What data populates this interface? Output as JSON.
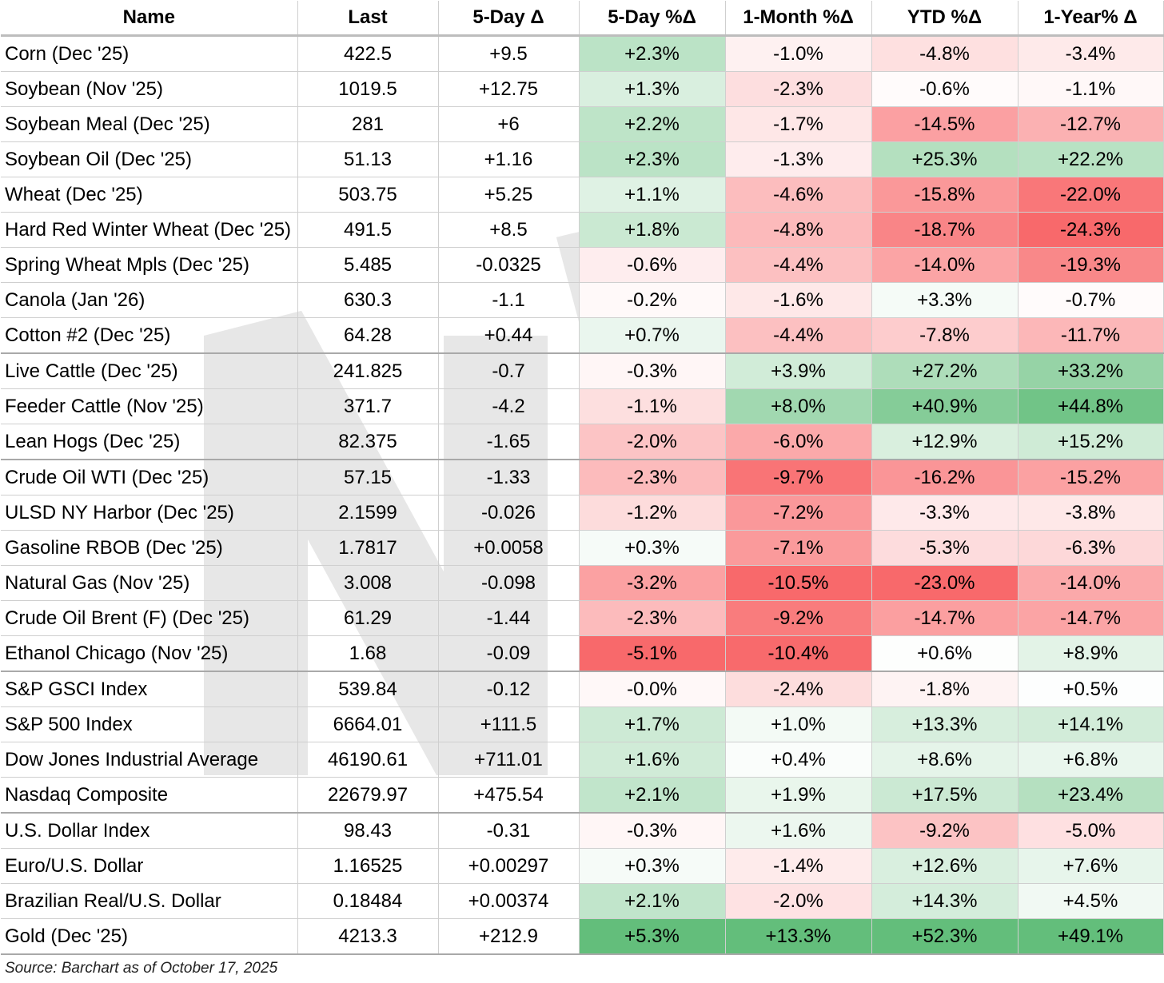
{
  "headers": [
    "Name",
    "Last",
    "5-Day Δ",
    "5-Day %Δ",
    "1-Month %Δ",
    "YTD %Δ",
    "1-Year% Δ"
  ],
  "rows": [
    {
      "name": "Corn (Dec '25)",
      "last": "422.5",
      "d5": "+9.5",
      "p5": "+2.3%",
      "m1": "-1.0%",
      "ytd": "-4.8%",
      "y1": "-3.4%"
    },
    {
      "name": "Soybean (Nov '25)",
      "last": "1019.5",
      "d5": "+12.75",
      "p5": "+1.3%",
      "m1": "-2.3%",
      "ytd": "-0.6%",
      "y1": "-1.1%"
    },
    {
      "name": "Soybean Meal (Dec '25)",
      "last": "281",
      "d5": "+6",
      "p5": "+2.2%",
      "m1": "-1.7%",
      "ytd": "-14.5%",
      "y1": "-12.7%"
    },
    {
      "name": "Soybean Oil (Dec '25)",
      "last": "51.13",
      "d5": "+1.16",
      "p5": "+2.3%",
      "m1": "-1.3%",
      "ytd": "+25.3%",
      "y1": "+22.2%"
    },
    {
      "name": "Wheat (Dec '25)",
      "last": "503.75",
      "d5": "+5.25",
      "p5": "+1.1%",
      "m1": "-4.6%",
      "ytd": "-15.8%",
      "y1": "-22.0%"
    },
    {
      "name": "Hard Red Winter Wheat (Dec '25)",
      "last": "491.5",
      "d5": "+8.5",
      "p5": "+1.8%",
      "m1": "-4.8%",
      "ytd": "-18.7%",
      "y1": "-24.3%"
    },
    {
      "name": "Spring Wheat Mpls (Dec '25)",
      "last": "5.485",
      "d5": "-0.0325",
      "p5": "-0.6%",
      "m1": "-4.4%",
      "ytd": "-14.0%",
      "y1": "-19.3%"
    },
    {
      "name": "Canola (Jan '26)",
      "last": "630.3",
      "d5": "-1.1",
      "p5": "-0.2%",
      "m1": "-1.6%",
      "ytd": "+3.3%",
      "y1": "-0.7%"
    },
    {
      "name": "Cotton #2 (Dec '25)",
      "last": "64.28",
      "d5": "+0.44",
      "p5": "+0.7%",
      "m1": "-4.4%",
      "ytd": "-7.8%",
      "y1": "-11.7%"
    },
    {
      "name": "Live Cattle (Dec '25)",
      "last": "241.825",
      "d5": "-0.7",
      "p5": "-0.3%",
      "m1": "+3.9%",
      "ytd": "+27.2%",
      "y1": "+33.2%"
    },
    {
      "name": "Feeder Cattle (Nov '25)",
      "last": "371.7",
      "d5": "-4.2",
      "p5": "-1.1%",
      "m1": "+8.0%",
      "ytd": "+40.9%",
      "y1": "+44.8%"
    },
    {
      "name": "Lean Hogs (Dec '25)",
      "last": "82.375",
      "d5": "-1.65",
      "p5": "-2.0%",
      "m1": "-6.0%",
      "ytd": "+12.9%",
      "y1": "+15.2%"
    },
    {
      "name": "Crude Oil WTI (Dec '25)",
      "last": "57.15",
      "d5": "-1.33",
      "p5": "-2.3%",
      "m1": "-9.7%",
      "ytd": "-16.2%",
      "y1": "-15.2%"
    },
    {
      "name": "ULSD NY Harbor (Dec '25)",
      "last": "2.1599",
      "d5": "-0.026",
      "p5": "-1.2%",
      "m1": "-7.2%",
      "ytd": "-3.3%",
      "y1": "-3.8%"
    },
    {
      "name": "Gasoline RBOB (Dec '25)",
      "last": "1.7817",
      "d5": "+0.0058",
      "p5": "+0.3%",
      "m1": "-7.1%",
      "ytd": "-5.3%",
      "y1": "-6.3%"
    },
    {
      "name": "Natural Gas (Nov '25)",
      "last": "3.008",
      "d5": "-0.098",
      "p5": "-3.2%",
      "m1": "-10.5%",
      "ytd": "-23.0%",
      "y1": "-14.0%"
    },
    {
      "name": "Crude Oil Brent (F) (Dec '25)",
      "last": "61.29",
      "d5": "-1.44",
      "p5": "-2.3%",
      "m1": "-9.2%",
      "ytd": "-14.7%",
      "y1": "-14.7%"
    },
    {
      "name": "Ethanol Chicago (Nov '25)",
      "last": "1.68",
      "d5": "-0.09",
      "p5": "-5.1%",
      "m1": "-10.4%",
      "ytd": "+0.6%",
      "y1": "+8.9%"
    },
    {
      "name": "S&P GSCI Index",
      "last": "539.84",
      "d5": "-0.12",
      "p5": "-0.0%",
      "m1": "-2.4%",
      "ytd": "-1.8%",
      "y1": "+0.5%"
    },
    {
      "name": "S&P 500 Index",
      "last": "6664.01",
      "d5": "+111.5",
      "p5": "+1.7%",
      "m1": "+1.0%",
      "ytd": "+13.3%",
      "y1": "+14.1%"
    },
    {
      "name": "Dow Jones Industrial Average",
      "last": "46190.61",
      "d5": "+711.01",
      "p5": "+1.6%",
      "m1": "+0.4%",
      "ytd": "+8.6%",
      "y1": "+6.8%"
    },
    {
      "name": "Nasdaq Composite",
      "last": "22679.97",
      "d5": "+475.54",
      "p5": "+2.1%",
      "m1": "+1.9%",
      "ytd": "+17.5%",
      "y1": "+23.4%"
    },
    {
      "name": "U.S. Dollar Index",
      "last": "98.43",
      "d5": "-0.31",
      "p5": "-0.3%",
      "m1": "+1.6%",
      "ytd": "-9.2%",
      "y1": "-5.0%"
    },
    {
      "name": "Euro/U.S. Dollar",
      "last": "1.16525",
      "d5": "+0.00297",
      "p5": "+0.3%",
      "m1": "-1.4%",
      "ytd": "+12.6%",
      "y1": "+7.6%"
    },
    {
      "name": "Brazilian Real/U.S. Dollar",
      "last": "0.18484",
      "d5": "+0.00374",
      "p5": "+2.1%",
      "m1": "-2.0%",
      "ytd": "+14.3%",
      "y1": "+4.5%"
    },
    {
      "name": "Gold (Dec '25)",
      "last": "4213.3",
      "d5": "+212.9",
      "p5": "+5.3%",
      "m1": "+13.3%",
      "ytd": "+52.3%",
      "y1": "+49.1%"
    }
  ],
  "group_ends": [
    8,
    11,
    17,
    21,
    25
  ],
  "source": "Source: Barchart as of October 17, 2025",
  "colors": {
    "positive_max": "#63be7b",
    "negative_max": "#f8696b",
    "neutral": "#ffffff"
  }
}
